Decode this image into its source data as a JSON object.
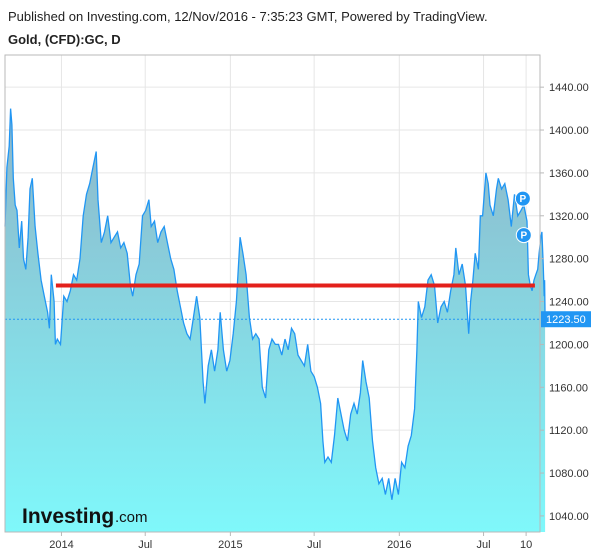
{
  "header": {
    "published": "Published on Investing.com, 12/Nov/2016 - 7:35:23 GMT, Powered by TradingView.",
    "symbol": "Gold, (CFD):GC, D"
  },
  "logo": {
    "main": "Investing",
    "suffix": ".com"
  },
  "colors": {
    "line": "#2196f3",
    "fill_top": "#8fb5c8",
    "fill_bottom": "#7ff8fb",
    "resistance": "#e3201b",
    "price_tag": "#2196f3",
    "grid": "#e6e6e6"
  },
  "chart_data": {
    "type": "area",
    "title": "",
    "xlabel": "",
    "ylabel": "",
    "ylim": [
      1025,
      1470
    ],
    "xlim": [
      "2013-09-01",
      "2016-10-31"
    ],
    "y_ticks": [
      1040,
      1080,
      1120,
      1160,
      1200,
      1240,
      1280,
      1320,
      1360,
      1400,
      1440
    ],
    "y_tick_labels": [
      "1040.00",
      "1080.00",
      "1120.00",
      "1160.00",
      "1200.00",
      "1240.00",
      "1280.00",
      "1320.00",
      "1360.00",
      "1400.00",
      "1440.00"
    ],
    "x_ticks": [
      {
        "date": "2014-01-01",
        "label": "2014"
      },
      {
        "date": "2014-07-01",
        "label": "Jul"
      },
      {
        "date": "2015-01-01",
        "label": "2015"
      },
      {
        "date": "2015-07-01",
        "label": "Jul"
      },
      {
        "date": "2016-01-01",
        "label": "2016"
      },
      {
        "date": "2016-07-01",
        "label": "Jul"
      },
      {
        "date": "2016-10-01",
        "label": "10"
      }
    ],
    "grid": true,
    "current_price": 1223.5,
    "current_price_label": "1223.50",
    "resistance_level": 1255,
    "resistance_range": [
      "2013-12-20",
      "2016-10-20"
    ],
    "markers": [
      {
        "date": "2016-09-24",
        "value": 1336,
        "label": "P"
      },
      {
        "date": "2016-09-26",
        "value": 1302,
        "label": "P"
      }
    ],
    "series": [
      {
        "values": [
          [
            "2013-09-01",
            1310
          ],
          [
            "2013-09-05",
            1365
          ],
          [
            "2013-09-10",
            1385
          ],
          [
            "2013-09-13",
            1420
          ],
          [
            "2013-09-16",
            1405
          ],
          [
            "2013-09-19",
            1355
          ],
          [
            "2013-09-23",
            1330
          ],
          [
            "2013-09-27",
            1325
          ],
          [
            "2013-10-02",
            1290
          ],
          [
            "2013-10-07",
            1315
          ],
          [
            "2013-10-11",
            1280
          ],
          [
            "2013-10-16",
            1270
          ],
          [
            "2013-10-21",
            1300
          ],
          [
            "2013-10-25",
            1345
          ],
          [
            "2013-10-30",
            1355
          ],
          [
            "2013-11-05",
            1310
          ],
          [
            "2013-11-11",
            1285
          ],
          [
            "2013-11-18",
            1260
          ],
          [
            "2013-11-25",
            1245
          ],
          [
            "2013-12-02",
            1230
          ],
          [
            "2013-12-06",
            1215
          ],
          [
            "2013-12-10",
            1265
          ],
          [
            "2013-12-16",
            1240
          ],
          [
            "2013-12-19",
            1200
          ],
          [
            "2013-12-23",
            1205
          ],
          [
            "2013-12-30",
            1200
          ],
          [
            "2014-01-06",
            1245
          ],
          [
            "2014-01-13",
            1240
          ],
          [
            "2014-01-20",
            1250
          ],
          [
            "2014-01-27",
            1265
          ],
          [
            "2014-02-03",
            1260
          ],
          [
            "2014-02-10",
            1280
          ],
          [
            "2014-02-17",
            1320
          ],
          [
            "2014-02-24",
            1340
          ],
          [
            "2014-03-03",
            1350
          ],
          [
            "2014-03-10",
            1365
          ],
          [
            "2014-03-17",
            1380
          ],
          [
            "2014-03-21",
            1335
          ],
          [
            "2014-03-28",
            1295
          ],
          [
            "2014-04-04",
            1305
          ],
          [
            "2014-04-11",
            1320
          ],
          [
            "2014-04-18",
            1295
          ],
          [
            "2014-04-25",
            1300
          ],
          [
            "2014-05-02",
            1305
          ],
          [
            "2014-05-09",
            1290
          ],
          [
            "2014-05-16",
            1295
          ],
          [
            "2014-05-23",
            1285
          ],
          [
            "2014-05-30",
            1255
          ],
          [
            "2014-06-04",
            1245
          ],
          [
            "2014-06-11",
            1265
          ],
          [
            "2014-06-18",
            1275
          ],
          [
            "2014-06-25",
            1320
          ],
          [
            "2014-07-02",
            1325
          ],
          [
            "2014-07-09",
            1335
          ],
          [
            "2014-07-14",
            1310
          ],
          [
            "2014-07-21",
            1315
          ],
          [
            "2014-07-28",
            1295
          ],
          [
            "2014-08-04",
            1305
          ],
          [
            "2014-08-11",
            1310
          ],
          [
            "2014-08-18",
            1295
          ],
          [
            "2014-08-25",
            1280
          ],
          [
            "2014-09-01",
            1270
          ],
          [
            "2014-09-08",
            1250
          ],
          [
            "2014-09-15",
            1235
          ],
          [
            "2014-09-22",
            1220
          ],
          [
            "2014-09-29",
            1210
          ],
          [
            "2014-10-06",
            1205
          ],
          [
            "2014-10-13",
            1225
          ],
          [
            "2014-10-20",
            1245
          ],
          [
            "2014-10-27",
            1225
          ],
          [
            "2014-11-03",
            1165
          ],
          [
            "2014-11-07",
            1145
          ],
          [
            "2014-11-14",
            1180
          ],
          [
            "2014-11-21",
            1195
          ],
          [
            "2014-11-28",
            1175
          ],
          [
            "2014-12-05",
            1195
          ],
          [
            "2014-12-10",
            1230
          ],
          [
            "2014-12-17",
            1195
          ],
          [
            "2014-12-24",
            1175
          ],
          [
            "2014-12-31",
            1185
          ],
          [
            "2015-01-07",
            1210
          ],
          [
            "2015-01-14",
            1240
          ],
          [
            "2015-01-22",
            1300
          ],
          [
            "2015-01-28",
            1285
          ],
          [
            "2015-02-04",
            1265
          ],
          [
            "2015-02-11",
            1225
          ],
          [
            "2015-02-18",
            1205
          ],
          [
            "2015-02-25",
            1210
          ],
          [
            "2015-03-04",
            1205
          ],
          [
            "2015-03-11",
            1160
          ],
          [
            "2015-03-18",
            1150
          ],
          [
            "2015-03-25",
            1195
          ],
          [
            "2015-04-01",
            1205
          ],
          [
            "2015-04-08",
            1200
          ],
          [
            "2015-04-15",
            1200
          ],
          [
            "2015-04-22",
            1190
          ],
          [
            "2015-04-29",
            1205
          ],
          [
            "2015-05-06",
            1195
          ],
          [
            "2015-05-13",
            1215
          ],
          [
            "2015-05-20",
            1210
          ],
          [
            "2015-05-27",
            1190
          ],
          [
            "2015-06-03",
            1185
          ],
          [
            "2015-06-10",
            1180
          ],
          [
            "2015-06-17",
            1200
          ],
          [
            "2015-06-24",
            1175
          ],
          [
            "2015-07-01",
            1170
          ],
          [
            "2015-07-08",
            1160
          ],
          [
            "2015-07-15",
            1145
          ],
          [
            "2015-07-20",
            1110
          ],
          [
            "2015-07-24",
            1090
          ],
          [
            "2015-07-31",
            1095
          ],
          [
            "2015-08-07",
            1090
          ],
          [
            "2015-08-14",
            1115
          ],
          [
            "2015-08-21",
            1150
          ],
          [
            "2015-08-28",
            1135
          ],
          [
            "2015-09-04",
            1120
          ],
          [
            "2015-09-11",
            1110
          ],
          [
            "2015-09-18",
            1135
          ],
          [
            "2015-09-25",
            1145
          ],
          [
            "2015-10-02",
            1135
          ],
          [
            "2015-10-09",
            1155
          ],
          [
            "2015-10-14",
            1185
          ],
          [
            "2015-10-21",
            1165
          ],
          [
            "2015-10-28",
            1150
          ],
          [
            "2015-11-04",
            1110
          ],
          [
            "2015-11-11",
            1085
          ],
          [
            "2015-11-18",
            1070
          ],
          [
            "2015-11-25",
            1075
          ],
          [
            "2015-12-02",
            1060
          ],
          [
            "2015-12-09",
            1075
          ],
          [
            "2015-12-16",
            1055
          ],
          [
            "2015-12-23",
            1075
          ],
          [
            "2015-12-30",
            1060
          ],
          [
            "2016-01-06",
            1090
          ],
          [
            "2016-01-13",
            1085
          ],
          [
            "2016-01-20",
            1105
          ],
          [
            "2016-01-27",
            1115
          ],
          [
            "2016-02-03",
            1140
          ],
          [
            "2016-02-08",
            1195
          ],
          [
            "2016-02-11",
            1240
          ],
          [
            "2016-02-18",
            1225
          ],
          [
            "2016-02-25",
            1235
          ],
          [
            "2016-03-03",
            1260
          ],
          [
            "2016-03-10",
            1265
          ],
          [
            "2016-03-17",
            1255
          ],
          [
            "2016-03-24",
            1220
          ],
          [
            "2016-03-31",
            1235
          ],
          [
            "2016-04-07",
            1240
          ],
          [
            "2016-04-14",
            1230
          ],
          [
            "2016-04-21",
            1250
          ],
          [
            "2016-04-28",
            1265
          ],
          [
            "2016-05-02",
            1290
          ],
          [
            "2016-05-09",
            1265
          ],
          [
            "2016-05-16",
            1275
          ],
          [
            "2016-05-23",
            1255
          ],
          [
            "2016-05-30",
            1210
          ],
          [
            "2016-06-03",
            1240
          ],
          [
            "2016-06-08",
            1260
          ],
          [
            "2016-06-13",
            1285
          ],
          [
            "2016-06-20",
            1270
          ],
          [
            "2016-06-24",
            1320
          ],
          [
            "2016-06-29",
            1320
          ],
          [
            "2016-07-06",
            1360
          ],
          [
            "2016-07-11",
            1350
          ],
          [
            "2016-07-15",
            1330
          ],
          [
            "2016-07-22",
            1320
          ],
          [
            "2016-07-29",
            1345
          ],
          [
            "2016-08-02",
            1355
          ],
          [
            "2016-08-09",
            1345
          ],
          [
            "2016-08-16",
            1350
          ],
          [
            "2016-08-23",
            1335
          ],
          [
            "2016-08-30",
            1310
          ],
          [
            "2016-09-06",
            1340
          ],
          [
            "2016-09-13",
            1320
          ],
          [
            "2016-09-20",
            1325
          ],
          [
            "2016-09-26",
            1330
          ],
          [
            "2016-10-03",
            1315
          ],
          [
            "2016-10-06",
            1265
          ],
          [
            "2016-10-10",
            1255
          ],
          [
            "2016-10-14",
            1250
          ],
          [
            "2016-10-18",
            1260
          ],
          [
            "2016-10-22",
            1265
          ],
          [
            "2016-10-26",
            1270
          ],
          [
            "2016-10-29",
            1285
          ],
          [
            "2016-11-02",
            1300
          ],
          [
            "2016-11-04",
            1305
          ],
          [
            "2016-11-07",
            1275
          ],
          [
            "2016-11-09",
            1245
          ],
          [
            "2016-11-10",
            1260
          ],
          [
            "2016-11-11",
            1223.5
          ]
        ]
      }
    ]
  }
}
